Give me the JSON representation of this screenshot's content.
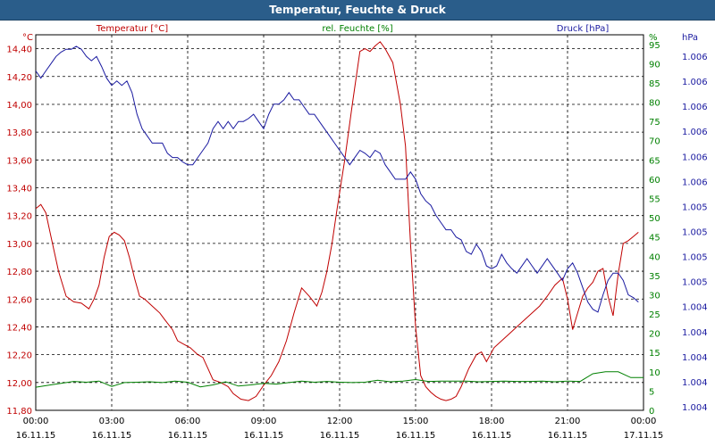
{
  "chart_data": {
    "type": "line",
    "title": "Temperatur, Feuchte & Druck",
    "axes": {
      "left": {
        "unit": "°C",
        "legend": "Temperatur [°C]",
        "color": "#c00000",
        "ylim": [
          11.8,
          14.5
        ],
        "ticks": [
          "11,80",
          "12,00",
          "12,20",
          "12,40",
          "12,60",
          "12,80",
          "13,00",
          "13,20",
          "13,40",
          "13,60",
          "13,80",
          "14,00",
          "14,20",
          "14,40"
        ]
      },
      "middle": {
        "unit": "%",
        "legend": "rel. Feuchte [%]",
        "color": "#008000",
        "ylim": [
          0,
          97.5
        ],
        "ticks": [
          "0",
          "5",
          "10",
          "15",
          "20",
          "25",
          "30",
          "35",
          "40",
          "45",
          "50",
          "55",
          "60",
          "65",
          "70",
          "75",
          "80",
          "85",
          "90",
          "95"
        ]
      },
      "right": {
        "unit": "hPa",
        "legend": "Druck [hPa]",
        "color": "#1a1aa0",
        "ylim": [
          1003.6,
          1006.2
        ],
        "ticks": [
          "1.004",
          "1.004",
          "1.004",
          "1.004",
          "1.004",
          "1.005",
          "1.005",
          "1.005",
          "1.005",
          "1.006",
          "1.006",
          "1.006",
          "1.006",
          "1.006",
          "1.006"
        ]
      }
    },
    "x_range_hours": [
      0,
      24
    ],
    "x_ticks": [
      {
        "time": "00:00",
        "date": "16.11.15"
      },
      {
        "time": "03:00",
        "date": "16.11.15"
      },
      {
        "time": "06:00",
        "date": "16.11.15"
      },
      {
        "time": "09:00",
        "date": "16.11.15"
      },
      {
        "time": "12:00",
        "date": "16.11.15"
      },
      {
        "time": "15:00",
        "date": "16.11.15"
      },
      {
        "time": "18:00",
        "date": "16.11.15"
      },
      {
        "time": "21:00",
        "date": "16.11.15"
      },
      {
        "time": "00:00",
        "date": "17.11.15"
      }
    ],
    "series": [
      {
        "name": "Temperatur [°C]",
        "axis": "left",
        "color": "#c00000",
        "x": [
          0,
          0.2,
          0.4,
          0.6,
          0.9,
          1.2,
          1.5,
          1.8,
          2.1,
          2.3,
          2.5,
          2.7,
          2.9,
          3.1,
          3.3,
          3.5,
          3.7,
          3.9,
          4.1,
          4.3,
          4.6,
          4.9,
          5.1,
          5.4,
          5.6,
          5.8,
          6.1,
          6.4,
          6.6,
          6.8,
          7.0,
          7.3,
          7.6,
          7.8,
          8.1,
          8.4,
          8.7,
          9.0,
          9.3,
          9.6,
          9.9,
          10.2,
          10.5,
          10.8,
          11.1,
          11.3,
          11.5,
          11.7,
          11.9,
          12.2,
          12.5,
          12.8,
          13.0,
          13.2,
          13.4,
          13.6,
          13.8,
          14.1,
          14.4,
          14.6,
          14.8,
          15.0,
          15.2,
          15.4,
          15.6,
          15.8,
          16.0,
          16.2,
          16.4,
          16.6,
          16.8,
          17.1,
          17.4,
          17.6,
          17.8,
          18.1,
          18.4,
          18.7,
          19.0,
          19.3,
          19.6,
          19.9,
          20.2,
          20.5,
          20.8,
          21.0,
          21.2,
          21.4,
          21.6,
          21.8,
          22.0,
          22.2,
          22.4,
          22.6,
          22.8,
          23.0,
          23.2,
          23.4,
          23.6,
          23.8
        ],
        "values": [
          13.25,
          13.28,
          13.22,
          13.05,
          12.8,
          12.62,
          12.58,
          12.57,
          12.53,
          12.6,
          12.7,
          12.9,
          13.05,
          13.08,
          13.06,
          13.02,
          12.9,
          12.75,
          12.62,
          12.6,
          12.55,
          12.5,
          12.45,
          12.38,
          12.3,
          12.28,
          12.25,
          12.2,
          12.18,
          12.1,
          12.02,
          12.0,
          11.97,
          11.92,
          11.88,
          11.87,
          11.9,
          11.98,
          12.05,
          12.15,
          12.3,
          12.5,
          12.68,
          12.62,
          12.55,
          12.65,
          12.8,
          13.0,
          13.25,
          13.6,
          14.0,
          14.38,
          14.4,
          14.38,
          14.42,
          14.45,
          14.4,
          14.3,
          14.0,
          13.7,
          13.0,
          12.4,
          12.05,
          11.97,
          11.93,
          11.9,
          11.88,
          11.87,
          11.88,
          11.9,
          11.97,
          12.1,
          12.2,
          12.22,
          12.15,
          12.25,
          12.3,
          12.35,
          12.4,
          12.45,
          12.5,
          12.55,
          12.62,
          12.7,
          12.75,
          12.6,
          12.38,
          12.5,
          12.62,
          12.68,
          12.72,
          12.8,
          12.82,
          12.62,
          12.48,
          12.78,
          13.0,
          13.02,
          13.05,
          13.08
        ]
      },
      {
        "name": "rel. Feuchte [%]",
        "axis": "middle",
        "color": "#008000",
        "x": [
          0,
          0.5,
          1,
          1.5,
          2,
          2.5,
          3,
          3.5,
          4,
          4.5,
          5,
          5.5,
          6,
          6.5,
          7,
          7.5,
          8,
          8.5,
          9,
          9.5,
          10,
          10.5,
          11,
          11.5,
          12,
          12.5,
          13,
          13.5,
          14,
          14.5,
          15,
          15.5,
          16,
          16.5,
          17,
          17.5,
          18,
          18.5,
          19,
          19.5,
          20,
          20.5,
          21,
          21.5,
          22,
          22.5,
          23,
          23.5,
          24
        ],
        "values": [
          6,
          6.5,
          7,
          7.5,
          7.3,
          7.6,
          6.2,
          7.2,
          7.3,
          7.4,
          7.2,
          7.6,
          7.3,
          6.1,
          6.6,
          7.4,
          6.3,
          6.6,
          7,
          6.8,
          7.2,
          7.6,
          7.3,
          7.5,
          7.3,
          7.2,
          7.3,
          7.8,
          7.4,
          7.6,
          8.0,
          7.5,
          7.6,
          7.6,
          7.6,
          7.4,
          7.5,
          7.6,
          7.5,
          7.5,
          7.6,
          7.4,
          7.6,
          7.5,
          9.5,
          10,
          10,
          8.5,
          8.5
        ]
      },
      {
        "name": "Druck [hPa]",
        "axis": "right",
        "color": "#1a1aa0",
        "x": [
          0,
          0.2,
          0.4,
          0.6,
          0.8,
          1.0,
          1.2,
          1.4,
          1.6,
          1.8,
          2.0,
          2.2,
          2.4,
          2.6,
          2.8,
          3.0,
          3.2,
          3.4,
          3.6,
          3.8,
          4.0,
          4.2,
          4.4,
          4.6,
          4.8,
          5.0,
          5.2,
          5.4,
          5.6,
          5.8,
          6.0,
          6.2,
          6.4,
          6.6,
          6.8,
          7.0,
          7.2,
          7.4,
          7.6,
          7.8,
          8.0,
          8.2,
          8.4,
          8.6,
          8.8,
          9.0,
          9.2,
          9.4,
          9.6,
          9.8,
          10.0,
          10.2,
          10.4,
          10.6,
          10.8,
          11.0,
          11.2,
          11.4,
          11.6,
          11.8,
          12.0,
          12.2,
          12.4,
          12.6,
          12.8,
          13.0,
          13.2,
          13.4,
          13.6,
          13.8,
          14.0,
          14.2,
          14.4,
          14.6,
          14.8,
          15.0,
          15.2,
          15.4,
          15.6,
          15.8,
          16.0,
          16.2,
          16.4,
          16.6,
          16.8,
          17.0,
          17.2,
          17.4,
          17.6,
          17.8,
          18.0,
          18.2,
          18.4,
          18.6,
          18.8,
          19.0,
          19.2,
          19.4,
          19.6,
          19.8,
          20.0,
          20.2,
          20.4,
          20.6,
          20.8,
          21.0,
          21.2,
          21.4,
          21.6,
          21.8,
          22.0,
          22.2,
          22.4,
          22.6,
          22.8,
          23.0,
          23.2,
          23.4,
          23.6,
          23.8
        ],
        "values": [
          1005.95,
          1005.9,
          1005.95,
          1006.0,
          1006.05,
          1006.08,
          1006.1,
          1006.1,
          1006.12,
          1006.1,
          1006.05,
          1006.02,
          1006.05,
          1005.98,
          1005.9,
          1005.85,
          1005.88,
          1005.85,
          1005.88,
          1005.8,
          1005.65,
          1005.55,
          1005.5,
          1005.45,
          1005.45,
          1005.45,
          1005.38,
          1005.35,
          1005.35,
          1005.32,
          1005.3,
          1005.3,
          1005.35,
          1005.4,
          1005.45,
          1005.55,
          1005.6,
          1005.55,
          1005.6,
          1005.55,
          1005.6,
          1005.6,
          1005.62,
          1005.65,
          1005.6,
          1005.55,
          1005.65,
          1005.72,
          1005.72,
          1005.75,
          1005.8,
          1005.75,
          1005.75,
          1005.7,
          1005.65,
          1005.65,
          1005.6,
          1005.55,
          1005.5,
          1005.45,
          1005.4,
          1005.35,
          1005.3,
          1005.35,
          1005.4,
          1005.38,
          1005.35,
          1005.4,
          1005.38,
          1005.3,
          1005.25,
          1005.2,
          1005.2,
          1005.2,
          1005.25,
          1005.2,
          1005.1,
          1005.05,
          1005.02,
          1004.95,
          1004.9,
          1004.85,
          1004.85,
          1004.8,
          1004.78,
          1004.7,
          1004.68,
          1004.75,
          1004.7,
          1004.6,
          1004.58,
          1004.6,
          1004.68,
          1004.62,
          1004.58,
          1004.55,
          1004.6,
          1004.65,
          1004.6,
          1004.55,
          1004.6,
          1004.65,
          1004.6,
          1004.55,
          1004.5,
          1004.58,
          1004.62,
          1004.55,
          1004.45,
          1004.35,
          1004.3,
          1004.28,
          1004.4,
          1004.5,
          1004.55,
          1004.55,
          1004.5,
          1004.4,
          1004.38,
          1004.35
        ]
      }
    ]
  }
}
